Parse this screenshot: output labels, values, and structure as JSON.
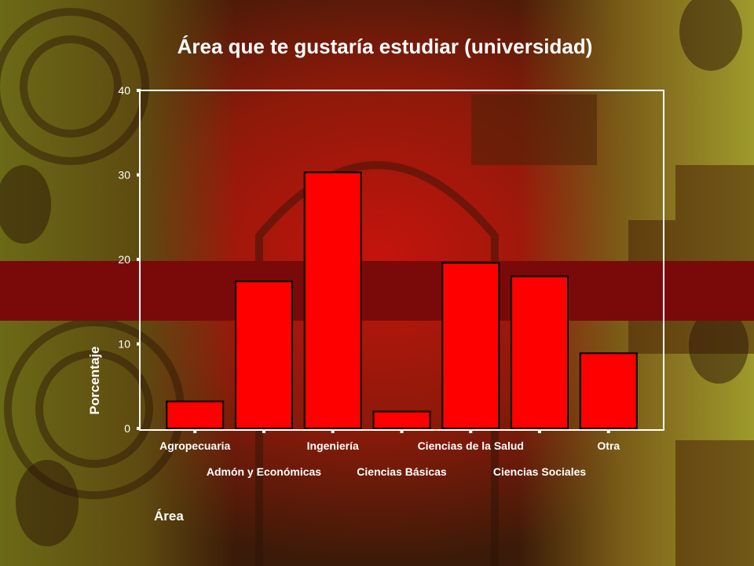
{
  "chart_data": {
    "type": "bar",
    "title": "Área que te gustaría estudiar (universidad)",
    "xlabel": "Área",
    "ylabel": "Porcentaje",
    "categories": [
      "Agropecuaria",
      "Admón y Económicas",
      "Ingeniería",
      "Ciencias Básicas",
      "Ciencias de la Salud",
      "Ciencias Sociales",
      "Otra"
    ],
    "values": [
      3.2,
      17.4,
      30.3,
      2.0,
      19.6,
      18.0,
      8.9
    ],
    "ylim": [
      0,
      40
    ],
    "yticks": [
      0,
      10,
      20,
      30,
      40
    ],
    "bar_color": "#ff0000",
    "bar_stroke": "#000000",
    "grid": false,
    "legend": "none"
  },
  "colors": {
    "band": "#7a0a0a",
    "plot_border": "#ffffff",
    "text": "#ffffff"
  }
}
